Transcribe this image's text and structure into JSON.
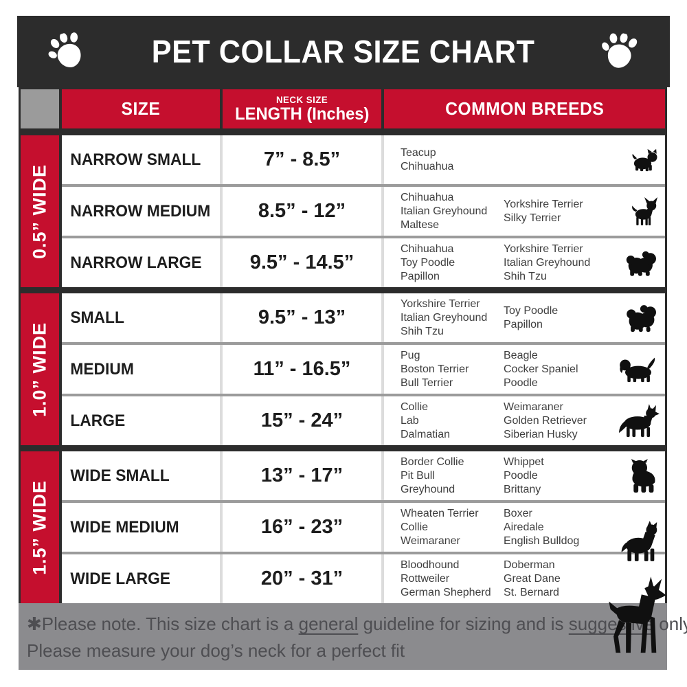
{
  "title": "PET COLLAR SIZE CHART",
  "header": {
    "size_label": "SIZE",
    "neck_size_label": "NECK SIZE",
    "length_label": "LENGTH (Inches)",
    "breeds_label": "COMMON BREEDS"
  },
  "groups": [
    {
      "width_label": "0.5” WIDE",
      "rows": [
        {
          "size": "NARROW SMALL",
          "length": "7” - 8.5”",
          "breeds_col1": [
            "Teacup",
            "Chihuahua"
          ],
          "breeds_col2": [],
          "icon": "yorkie-icon"
        },
        {
          "size": "NARROW MEDIUM",
          "length": "8.5” - 12”",
          "breeds_col1": [
            "Chihuahua",
            "Italian Greyhound",
            "Maltese"
          ],
          "breeds_col2": [
            "Yorkshire Terrier",
            "Silky Terrier"
          ],
          "icon": "chihuahua-icon"
        },
        {
          "size": "NARROW LARGE",
          "length": "9.5” - 14.5”",
          "breeds_col1": [
            "Chihuahua",
            "Toy Poodle",
            "Papillon"
          ],
          "breeds_col2": [
            "Yorkshire Terrier",
            "Italian Greyhound",
            "Shih Tzu"
          ],
          "icon": "shih-tzu-icon"
        }
      ]
    },
    {
      "width_label": "1.0” WIDE",
      "rows": [
        {
          "size": "SMALL",
          "length": "9.5” - 13”",
          "breeds_col1": [
            "Yorkshire Terrier",
            "Italian Greyhound",
            "Shih Tzu"
          ],
          "breeds_col2": [
            "Toy Poodle",
            "Papillon"
          ],
          "icon": "pekingese-icon"
        },
        {
          "size": "MEDIUM",
          "length": "11” - 16.5”",
          "breeds_col1": [
            "Pug",
            "Boston Terrier",
            "Bull Terrier"
          ],
          "breeds_col2": [
            "Beagle",
            "Cocker Spaniel",
            "Poodle"
          ],
          "icon": "beagle-icon"
        },
        {
          "size": "LARGE",
          "length": "15” - 24”",
          "breeds_col1": [
            "Collie",
            "Lab",
            "Dalmatian"
          ],
          "breeds_col2": [
            "Weimaraner",
            "Golden Retriever",
            "Siberian Husky"
          ],
          "icon": "shepherd-icon"
        }
      ]
    },
    {
      "width_label": "1.5” WIDE",
      "rows": [
        {
          "size": "WIDE SMALL",
          "length": "13” - 17”",
          "breeds_col1": [
            "Border Collie",
            "Pit Bull",
            "Greyhound"
          ],
          "breeds_col2": [
            "Whippet",
            "Poodle",
            "Brittany"
          ],
          "icon": "bulldog-icon"
        },
        {
          "size": "WIDE MEDIUM",
          "length": "16” - 23”",
          "breeds_col1": [
            "Wheaten Terrier",
            "Collie",
            "Weimaraner"
          ],
          "breeds_col2": [
            "Boxer",
            "Airedale",
            "English Bulldog"
          ],
          "icon": "pitbull-icon"
        },
        {
          "size": "WIDE LARGE",
          "length": "20” - 31”",
          "breeds_col1": [
            "Bloodhound",
            "Rottweiler",
            "German Shepherd"
          ],
          "breeds_col2": [
            "Doberman",
            "Great Dane",
            "St. Bernard"
          ],
          "icon": "doberman-icon"
        }
      ]
    }
  ],
  "footer": {
    "line1_segments": [
      {
        "text": "✱Please note. This size chart is a "
      },
      {
        "text": "general",
        "underline": true
      },
      {
        "text": " guideline for sizing and is "
      },
      {
        "text": "suggestive",
        "underline": true
      },
      {
        "text": " only."
      }
    ],
    "line2": "Please measure your dog’s neck for a perfect fit"
  },
  "icons": {
    "title_left": "paw-icon",
    "title_right": "paw-icon"
  },
  "colors": {
    "accent_red": "#c50f2e",
    "header_dark": "#2c2c2c",
    "footer_gray": "#8b8b8e",
    "row_separator_gray": "#9b9b9b",
    "column_separator_gray": "#dcdcdc"
  }
}
